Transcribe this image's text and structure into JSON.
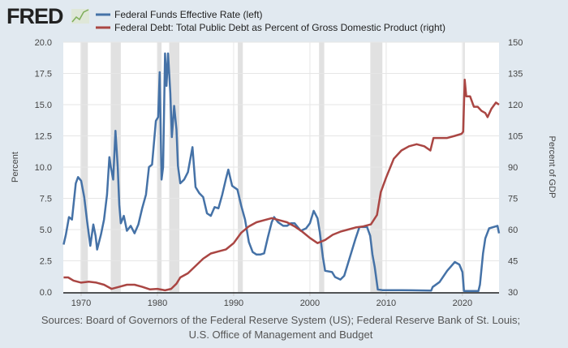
{
  "logo": "FRED",
  "chart_data": {
    "type": "line",
    "title": "",
    "xlabel": "",
    "ylabel_left": "Percent",
    "ylabel_right": "Percent of GDP",
    "xlim": [
      1967.66,
      2024.8
    ],
    "ylim_left": [
      0,
      20
    ],
    "ylim_right": [
      30,
      150
    ],
    "x_ticks": [
      "1970",
      "1980",
      "1990",
      "2000",
      "2010",
      "2020"
    ],
    "y_ticks_left": [
      "0.0",
      "2.5",
      "5.0",
      "7.5",
      "10.0",
      "12.5",
      "15.0",
      "17.5",
      "20.0"
    ],
    "y_ticks_right": [
      "30",
      "45",
      "60",
      "75",
      "90",
      "105",
      "120",
      "135",
      "150"
    ],
    "grid": true,
    "legend_placement": "top",
    "recessions": [
      [
        1969.92,
        1970.88
      ],
      [
        1973.88,
        1975.2
      ],
      [
        1980.0,
        1980.55
      ],
      [
        1981.55,
        1982.88
      ],
      [
        1990.55,
        1991.2
      ],
      [
        2001.2,
        2001.88
      ],
      [
        2007.92,
        2009.5
      ],
      [
        2020.1,
        2020.3
      ]
    ],
    "series": [
      {
        "name": "Federal Funds Effective Rate (left)",
        "axis": "left",
        "color": "#4572a7",
        "points": [
          [
            1967.7,
            3.8
          ],
          [
            1968.0,
            4.6
          ],
          [
            1968.4,
            6.0
          ],
          [
            1968.8,
            5.8
          ],
          [
            1969.3,
            8.7
          ],
          [
            1969.6,
            9.2
          ],
          [
            1970.0,
            8.9
          ],
          [
            1970.4,
            7.6
          ],
          [
            1970.8,
            5.6
          ],
          [
            1971.2,
            3.7
          ],
          [
            1971.6,
            5.4
          ],
          [
            1971.9,
            4.5
          ],
          [
            1972.1,
            3.4
          ],
          [
            1972.6,
            4.6
          ],
          [
            1973.0,
            5.8
          ],
          [
            1973.4,
            7.8
          ],
          [
            1973.7,
            10.8
          ],
          [
            1973.9,
            10.0
          ],
          [
            1974.2,
            9.0
          ],
          [
            1974.5,
            12.9
          ],
          [
            1974.8,
            10.0
          ],
          [
            1975.0,
            7.0
          ],
          [
            1975.2,
            5.5
          ],
          [
            1975.6,
            6.1
          ],
          [
            1976.0,
            4.9
          ],
          [
            1976.5,
            5.3
          ],
          [
            1977.0,
            4.7
          ],
          [
            1977.5,
            5.4
          ],
          [
            1978.0,
            6.7
          ],
          [
            1978.5,
            7.8
          ],
          [
            1978.9,
            10.0
          ],
          [
            1979.3,
            10.2
          ],
          [
            1979.8,
            13.7
          ],
          [
            1980.1,
            14.0
          ],
          [
            1980.3,
            17.6
          ],
          [
            1980.55,
            9.0
          ],
          [
            1980.75,
            10.0
          ],
          [
            1981.0,
            19.1
          ],
          [
            1981.2,
            16.5
          ],
          [
            1981.4,
            19.1
          ],
          [
            1981.7,
            15.9
          ],
          [
            1981.9,
            12.4
          ],
          [
            1982.2,
            14.9
          ],
          [
            1982.5,
            13.0
          ],
          [
            1982.7,
            10.1
          ],
          [
            1983.0,
            8.7
          ],
          [
            1983.5,
            9.0
          ],
          [
            1984.0,
            9.6
          ],
          [
            1984.6,
            11.6
          ],
          [
            1985.0,
            8.4
          ],
          [
            1985.5,
            7.9
          ],
          [
            1986.0,
            7.6
          ],
          [
            1986.5,
            6.3
          ],
          [
            1987.0,
            6.1
          ],
          [
            1987.5,
            6.8
          ],
          [
            1988.0,
            6.7
          ],
          [
            1988.5,
            7.8
          ],
          [
            1989.0,
            9.1
          ],
          [
            1989.3,
            9.8
          ],
          [
            1989.8,
            8.5
          ],
          [
            1990.5,
            8.2
          ],
          [
            1991.0,
            6.9
          ],
          [
            1991.5,
            5.8
          ],
          [
            1992.0,
            4.0
          ],
          [
            1992.5,
            3.2
          ],
          [
            1993.0,
            3.0
          ],
          [
            1993.5,
            3.0
          ],
          [
            1994.0,
            3.1
          ],
          [
            1994.5,
            4.4
          ],
          [
            1995.0,
            5.6
          ],
          [
            1995.3,
            6.0
          ],
          [
            1995.8,
            5.6
          ],
          [
            1996.5,
            5.3
          ],
          [
            1997.0,
            5.3
          ],
          [
            1997.5,
            5.5
          ],
          [
            1998.0,
            5.5
          ],
          [
            1998.8,
            4.9
          ],
          [
            1999.5,
            5.1
          ],
          [
            2000.0,
            5.5
          ],
          [
            2000.5,
            6.5
          ],
          [
            2001.0,
            5.9
          ],
          [
            2001.3,
            4.8
          ],
          [
            2001.7,
            2.8
          ],
          [
            2002.0,
            1.7
          ],
          [
            2002.9,
            1.6
          ],
          [
            2003.3,
            1.2
          ],
          [
            2004.0,
            1.0
          ],
          [
            2004.5,
            1.3
          ],
          [
            2005.0,
            2.3
          ],
          [
            2006.0,
            4.3
          ],
          [
            2006.5,
            5.2
          ],
          [
            2007.5,
            5.2
          ],
          [
            2007.9,
            4.5
          ],
          [
            2008.2,
            3.0
          ],
          [
            2008.5,
            2.0
          ],
          [
            2008.9,
            0.2
          ],
          [
            2009.5,
            0.15
          ],
          [
            2012.0,
            0.15
          ],
          [
            2015.9,
            0.12
          ],
          [
            2016.1,
            0.4
          ],
          [
            2017.0,
            0.8
          ],
          [
            2018.0,
            1.7
          ],
          [
            2019.0,
            2.4
          ],
          [
            2019.6,
            2.2
          ],
          [
            2020.0,
            1.6
          ],
          [
            2020.2,
            0.08
          ],
          [
            2022.1,
            0.08
          ],
          [
            2022.3,
            0.6
          ],
          [
            2022.7,
            3.1
          ],
          [
            2023.0,
            4.3
          ],
          [
            2023.5,
            5.1
          ],
          [
            2024.6,
            5.3
          ],
          [
            2024.8,
            4.7
          ]
        ]
      },
      {
        "name": "Federal Debt: Total Public Debt as Percent of Gross Domestic Product (right)",
        "axis": "right",
        "color": "#aa4643",
        "points": [
          [
            1967.7,
            37.0
          ],
          [
            1968.3,
            37.0
          ],
          [
            1969,
            35.5
          ],
          [
            1970,
            34.5
          ],
          [
            1971,
            35
          ],
          [
            1972,
            34.5
          ],
          [
            1973,
            33.5
          ],
          [
            1974,
            31.5
          ],
          [
            1975,
            32.5
          ],
          [
            1976,
            33.5
          ],
          [
            1977,
            33.5
          ],
          [
            1978,
            32.5
          ],
          [
            1979,
            31.3
          ],
          [
            1980,
            31.5
          ],
          [
            1981,
            30.8
          ],
          [
            1981.8,
            31.5
          ],
          [
            1982.5,
            34
          ],
          [
            1983,
            37
          ],
          [
            1984,
            39
          ],
          [
            1985,
            42.5
          ],
          [
            1986,
            46
          ],
          [
            1987,
            48.5
          ],
          [
            1988,
            49.5
          ],
          [
            1989,
            50.5
          ],
          [
            1990,
            53.5
          ],
          [
            1991,
            58.5
          ],
          [
            1992,
            61.5
          ],
          [
            1993,
            63.5
          ],
          [
            1994,
            64.5
          ],
          [
            1995,
            65.5
          ],
          [
            1996,
            64.5
          ],
          [
            1997,
            63.5
          ],
          [
            1998,
            61.5
          ],
          [
            1999,
            59
          ],
          [
            2000,
            56
          ],
          [
            2001,
            53.5
          ],
          [
            2002,
            55
          ],
          [
            2003,
            57.5
          ],
          [
            2004,
            59
          ],
          [
            2005,
            60
          ],
          [
            2006,
            61
          ],
          [
            2007,
            61.5
          ],
          [
            2008,
            62.5
          ],
          [
            2008.8,
            67
          ],
          [
            2009.3,
            78
          ],
          [
            2010,
            85
          ],
          [
            2011,
            94
          ],
          [
            2012,
            98
          ],
          [
            2013,
            100
          ],
          [
            2014,
            101
          ],
          [
            2015,
            100
          ],
          [
            2015.8,
            98
          ],
          [
            2016.2,
            104
          ],
          [
            2017,
            104
          ],
          [
            2018,
            104
          ],
          [
            2019,
            105
          ],
          [
            2019.9,
            106
          ],
          [
            2020.1,
            107
          ],
          [
            2020.3,
            132
          ],
          [
            2020.5,
            124
          ],
          [
            2021,
            124
          ],
          [
            2021.5,
            119
          ],
          [
            2022,
            119
          ],
          [
            2022.5,
            117
          ],
          [
            2023,
            116
          ],
          [
            2023.3,
            114
          ],
          [
            2023.8,
            118
          ],
          [
            2024.4,
            121
          ],
          [
            2024.8,
            120
          ]
        ]
      }
    ]
  },
  "sources": [
    "Sources: Board of Governors of the Federal Reserve System (US); Federal Reserve Bank of St. Louis;",
    "U.S. Office of Management and Budget"
  ]
}
